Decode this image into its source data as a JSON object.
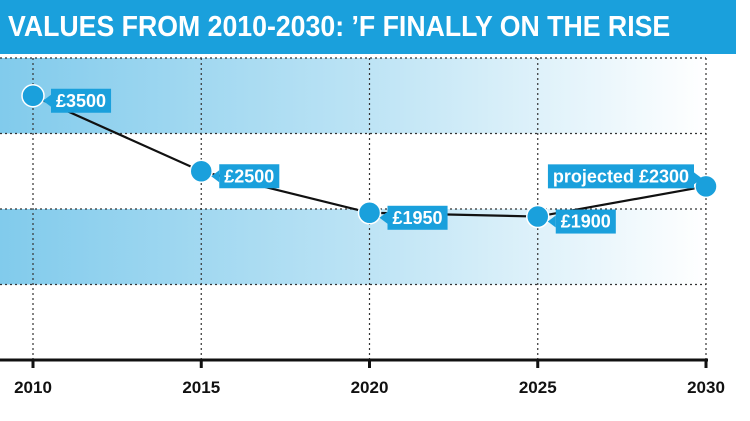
{
  "header": {
    "title": "VALUES FROM 2010-2030: ’F FINALLY ON THE RISE"
  },
  "colors": {
    "accent": "#1aa0dc",
    "band": "#1aa0dc",
    "line": "#111111",
    "grid": "#333333"
  },
  "chart_data": {
    "type": "line",
    "title": "VALUES FROM 2010-2030: ’F FINALLY ON THE RISE",
    "xlabel": "",
    "ylabel": "",
    "x": [
      2010,
      2015,
      2020,
      2025,
      2030
    ],
    "categories": [
      "2010",
      "2015",
      "2020",
      "2025",
      "2030"
    ],
    "series": [
      {
        "values": [
          3500,
          2500,
          1950,
          1900,
          2300
        ]
      }
    ],
    "data_labels": [
      "£3500",
      "£2500",
      "£1950",
      "£1900",
      "projected £2300"
    ],
    "ylim": [
      0,
      4000
    ],
    "grid": true,
    "legend": "none"
  }
}
